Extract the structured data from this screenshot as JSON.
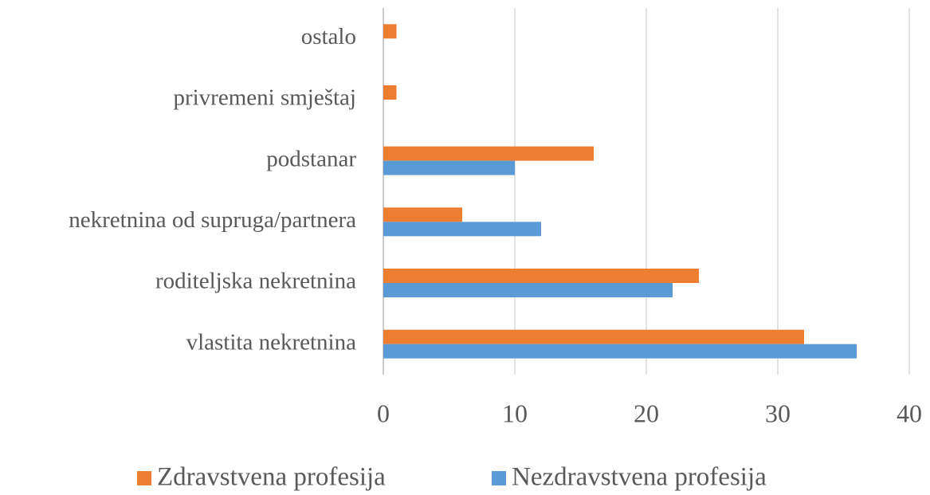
{
  "chart_data": {
    "type": "bar",
    "orientation": "horizontal",
    "categories": [
      "ostalo",
      "privremeni smještaj",
      "podstanar",
      "nekretnina od supruga/partnera",
      "roditeljska nekretnina",
      "vlastita nekretnina"
    ],
    "series": [
      {
        "name": "Zdravstvena profesija",
        "color": "#ed7d31",
        "values": [
          1,
          1,
          16,
          6,
          24,
          32
        ]
      },
      {
        "name": "Nezdravstvena profesija",
        "color": "#5b9bd5",
        "values": [
          0,
          0,
          10,
          12,
          22,
          36
        ]
      }
    ],
    "xlim": [
      0,
      40
    ],
    "xticks": [
      0,
      10,
      20,
      30,
      40
    ],
    "grid": true,
    "legend": "bottom"
  }
}
